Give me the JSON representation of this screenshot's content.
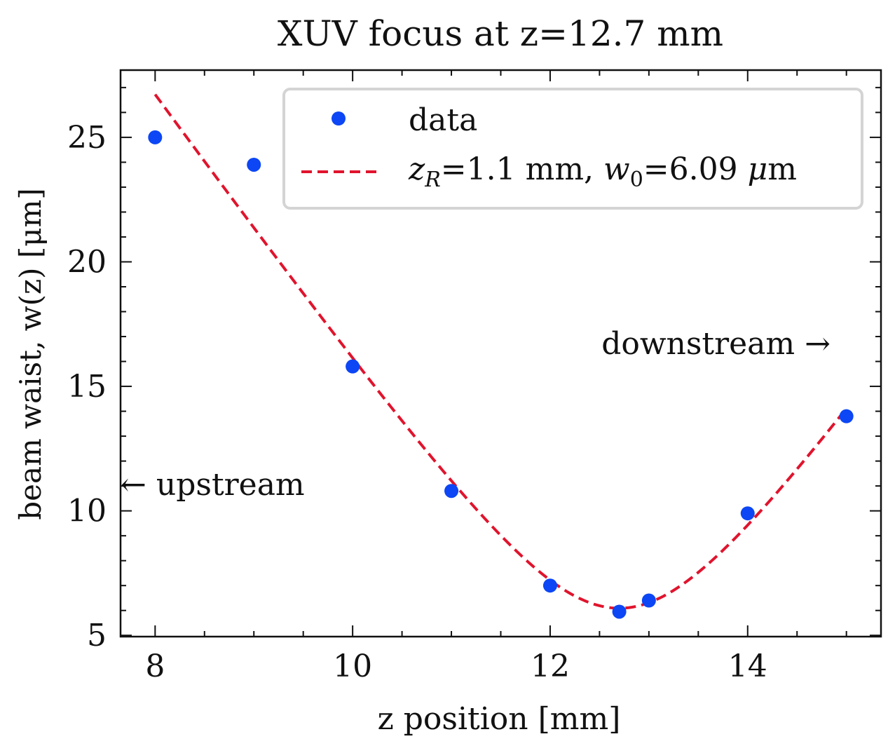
{
  "chart_data": {
    "type": "scatter",
    "title": "XUV focus at z=12.7 mm",
    "xlabel": "z position [mm]",
    "ylabel": "beam waist, w(z) [μm]",
    "xlim": [
      7.65,
      15.35
    ],
    "ylim": [
      4.95,
      27.7
    ],
    "xticks": [
      8,
      10,
      12,
      14
    ],
    "yticks": [
      5,
      10,
      15,
      20,
      25
    ],
    "xtick_labels": [
      "8",
      "10",
      "12",
      "14"
    ],
    "ytick_labels": [
      "5",
      "10",
      "15",
      "20",
      "25"
    ],
    "grid": false,
    "legend_position": "top-right",
    "series": [
      {
        "name": "data",
        "kind": "scatter",
        "color": "#0c46f5",
        "x": [
          8,
          9,
          10,
          11,
          12,
          12.7,
          13,
          14,
          15
        ],
        "y": [
          25.0,
          23.9,
          15.8,
          10.8,
          7.0,
          5.95,
          6.4,
          9.9,
          13.8
        ]
      },
      {
        "name": "zR=1.1 mm, w0=6.09 μm",
        "name_parts": {
          "z": "z",
          "z_sub": "R",
          "mid": "=1.1 mm, ",
          "w": "w",
          "w_sub": "0",
          "end": "=6.09 ",
          "mu": "μ",
          "unit": "m"
        },
        "kind": "line",
        "style": "dashed",
        "color": "#e0142d",
        "model": {
          "z0": 12.7,
          "w0": 6.09,
          "zR": 1.1,
          "x_range": [
            8,
            15
          ]
        }
      }
    ],
    "annotations": [
      {
        "text": "downstream →",
        "x": 13.8,
        "y": 16.6
      },
      {
        "text": "← upstream",
        "x": 7.65,
        "y": 11.0
      }
    ]
  }
}
